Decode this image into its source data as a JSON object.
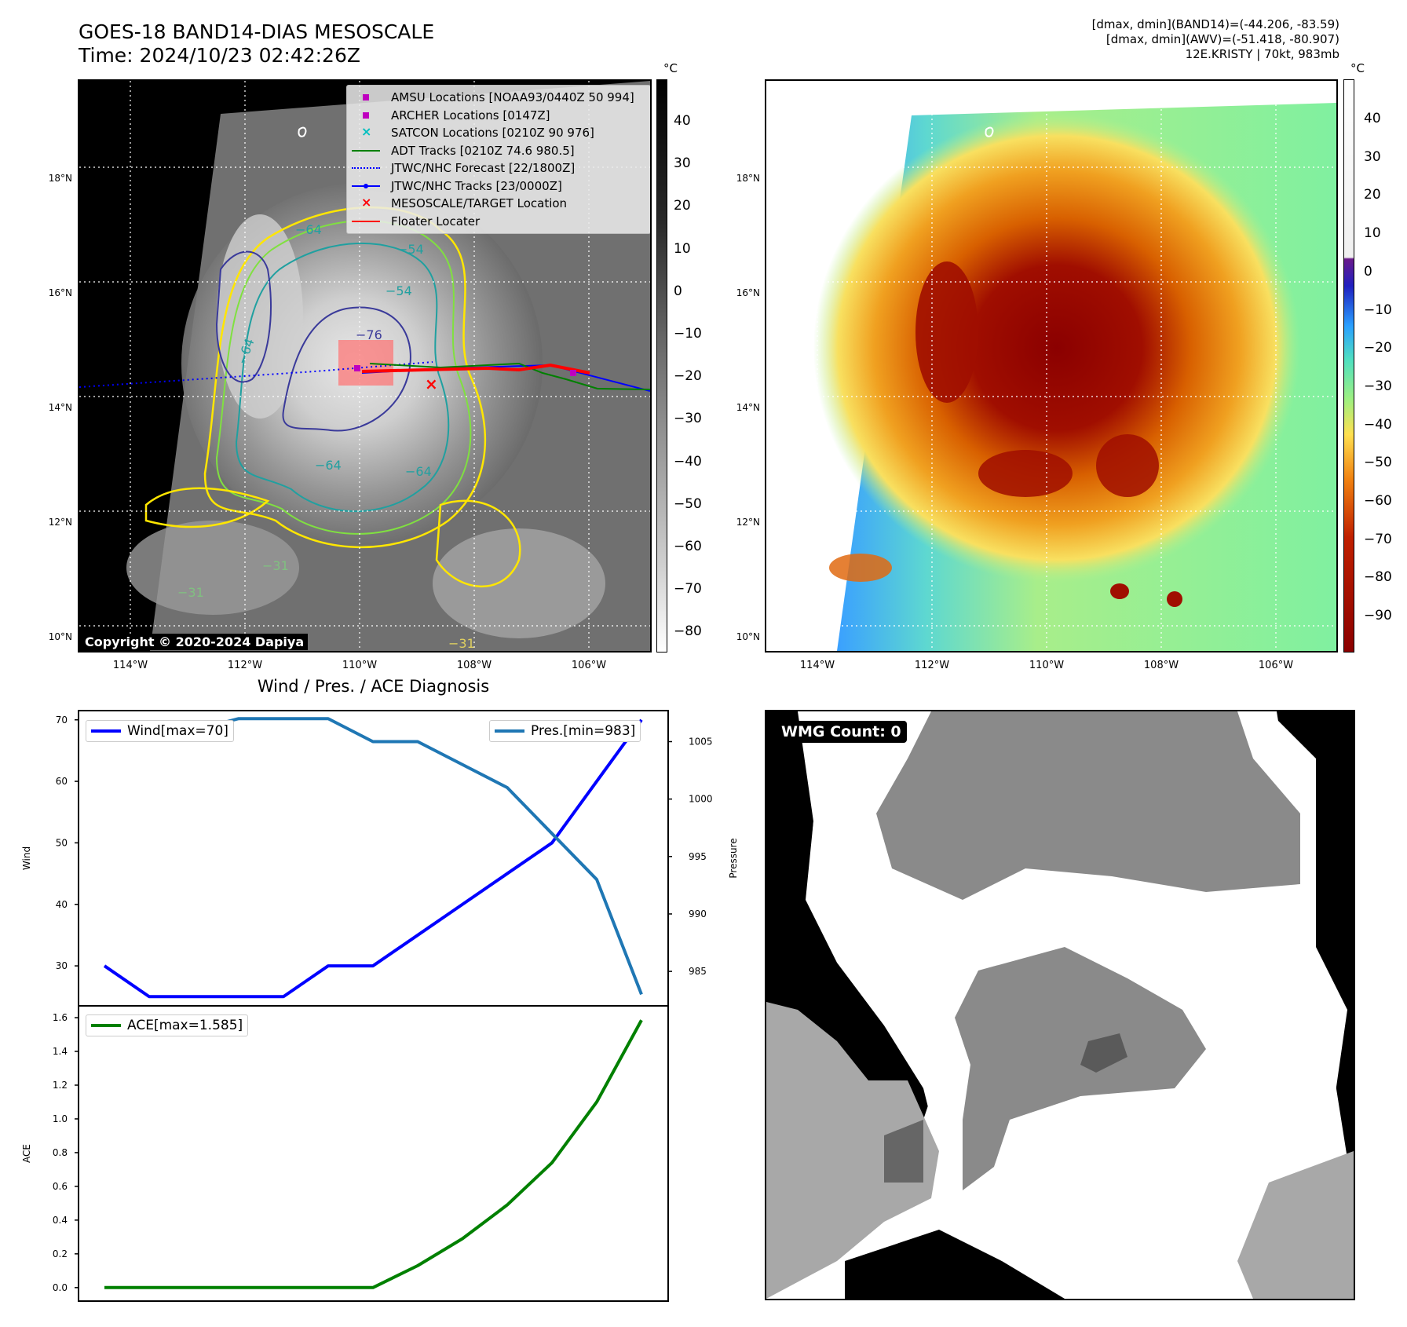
{
  "header": {
    "title_line1": "GOES-18 BAND14-DIAS MESOSCALE",
    "title_line2": "Time: 2024/10/23 02:42:26Z",
    "info_line1": "[dmax, dmin](BAND14)=(-44.206, -83.59)",
    "info_line2": "[dmax, dmin](AWV)=(-51.418, -80.907)",
    "info_line3": "12E.KRISTY | 70kt, 983mb"
  },
  "map": {
    "lat_labels": [
      "18°N",
      "16°N",
      "14°N",
      "12°N",
      "10°N"
    ],
    "lon_labels": [
      "114°W",
      "112°W",
      "110°W",
      "108°W",
      "106°W"
    ],
    "contour_labels": [
      "−54",
      "−54",
      "−76",
      "−64",
      "−64",
      "−31",
      "−31",
      "−31",
      "−64",
      "−64"
    ],
    "copyright": "Copyright © 2020-2024 Dapiya",
    "legend": [
      {
        "label": "AMSU Locations [NOAA93/0440Z 50 994]",
        "color": "#bf00bf",
        "marker": "square"
      },
      {
        "label": "ARCHER Locations [0147Z]",
        "color": "#bf00bf",
        "marker": "square"
      },
      {
        "label": "SATCON Locations [0210Z 90 976]",
        "color": "#00bfbf",
        "marker": "x"
      },
      {
        "label": "ADT Tracks [0210Z 74.6 980.5]",
        "color": "#008000",
        "marker": "line"
      },
      {
        "label": "JTWC/NHC Forecast [22/1800Z]",
        "color": "#0000ff",
        "marker": "dotted"
      },
      {
        "label": "JTWC/NHC Tracks [23/0000Z]",
        "color": "#0000ff",
        "marker": "line-dot"
      },
      {
        "label": "MESOSCALE/TARGET Location",
        "color": "#ff0000",
        "marker": "x"
      },
      {
        "label": "Floater Locater",
        "color": "#ff0000",
        "marker": "line"
      }
    ]
  },
  "colorbar_gray": {
    "unit": "°C",
    "ticks": [
      "40",
      "30",
      "20",
      "10",
      "0",
      "−10",
      "−20",
      "−30",
      "−40",
      "−50",
      "−60",
      "−70",
      "−80"
    ]
  },
  "colorbar_color": {
    "unit": "°C",
    "ticks": [
      "40",
      "30",
      "20",
      "10",
      "0",
      "−10",
      "−20",
      "−30",
      "−40",
      "−50",
      "−60",
      "−70",
      "−80",
      "−90"
    ]
  },
  "wmg": {
    "label": "WMG Count: 0"
  },
  "chart_data": {
    "type": "line",
    "title": "Wind / Pres. / ACE Diagnosis",
    "panels": [
      {
        "ylabel": "Wind",
        "ylabel_right": "Pressure",
        "yticks": [
          "70",
          "60",
          "50",
          "40",
          "30"
        ],
        "yticks_right": [
          "1005",
          "1000",
          "995",
          "990",
          "985"
        ],
        "ylim": [
          23.5,
          71.5
        ],
        "ylim_right": [
          982,
          1007.7
        ],
        "series": [
          {
            "name": "Wind[max=70]",
            "color": "#0000ff",
            "axis": "left",
            "values": [
              30,
              25,
              25,
              25,
              25,
              30,
              30,
              35,
              40,
              45,
              50,
              60,
              70
            ]
          },
          {
            "name": "Pres.[min=983]",
            "color": "#1f77b4",
            "axis": "right",
            "values": [
              1006,
              1006,
              1006,
              1007,
              1007,
              1007,
              1005,
              1005,
              1003,
              1001,
              997,
              993,
              983
            ]
          }
        ]
      },
      {
        "ylabel": "ACE",
        "yticks": [
          "1.6",
          "1.4",
          "1.2",
          "1.0",
          "0.8",
          "0.6",
          "0.4",
          "0.2",
          "0.0"
        ],
        "ylim": [
          -0.08,
          1.67
        ],
        "series": [
          {
            "name": "ACE[max=1.585]",
            "color": "#008000",
            "axis": "left",
            "values": [
              0,
              0,
              0,
              0,
              0,
              0,
              0,
              0.13,
              0.29,
              0.49,
              0.74,
              1.1,
              1.585
            ]
          }
        ]
      }
    ]
  }
}
